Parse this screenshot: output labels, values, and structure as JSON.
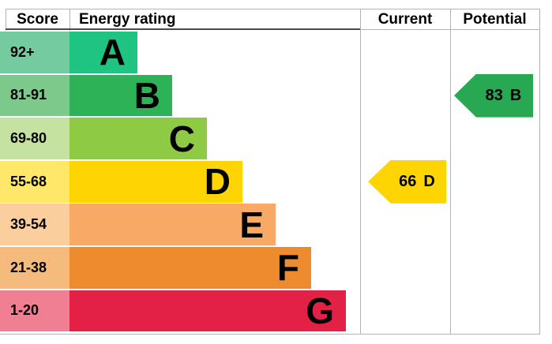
{
  "header": {
    "score": "Score",
    "energy_rating": "Energy rating",
    "current": "Current",
    "potential": "Potential"
  },
  "bands": [
    {
      "score_range": "92+",
      "letter": "A",
      "color": "#1fc483",
      "score_color": "#74cba0"
    },
    {
      "score_range": "81-91",
      "letter": "B",
      "color": "#2eb257",
      "score_color": "#7cc98b"
    },
    {
      "score_range": "69-80",
      "letter": "C",
      "color": "#8fca45",
      "score_color": "#c5e2a0"
    },
    {
      "score_range": "55-68",
      "letter": "D",
      "color": "#fed402",
      "score_color": "#ffe76a"
    },
    {
      "score_range": "39-54",
      "letter": "E",
      "color": "#f8a965",
      "score_color": "#fbce9e"
    },
    {
      "score_range": "21-38",
      "letter": "F",
      "color": "#ee8b2e",
      "score_color": "#f4bb7c"
    },
    {
      "score_range": "1-20",
      "letter": "G",
      "color": "#e32045",
      "score_color": "#f07f94"
    }
  ],
  "current": {
    "value": "66",
    "band": "D",
    "color": "#fed402"
  },
  "potential": {
    "value": "83",
    "band": "B",
    "color": "#28a852"
  },
  "chart_data": {
    "type": "bar",
    "title": "EPC energy rating chart",
    "columns": [
      "Score",
      "Energy rating",
      "Current",
      "Potential"
    ],
    "bands": [
      {
        "score_range": "92+",
        "rating": "A"
      },
      {
        "score_range": "81-91",
        "rating": "B"
      },
      {
        "score_range": "69-80",
        "rating": "C"
      },
      {
        "score_range": "55-68",
        "rating": "D"
      },
      {
        "score_range": "39-54",
        "rating": "E"
      },
      {
        "score_range": "21-38",
        "rating": "F"
      },
      {
        "score_range": "1-20",
        "rating": "G"
      }
    ],
    "current_rating": {
      "score": 66,
      "band": "D"
    },
    "potential_rating": {
      "score": 83,
      "band": "B"
    },
    "layout": {
      "bar_direction": "horizontal",
      "bars_grow_with_worse_rating": true,
      "legend": "none",
      "grid": "off"
    }
  }
}
